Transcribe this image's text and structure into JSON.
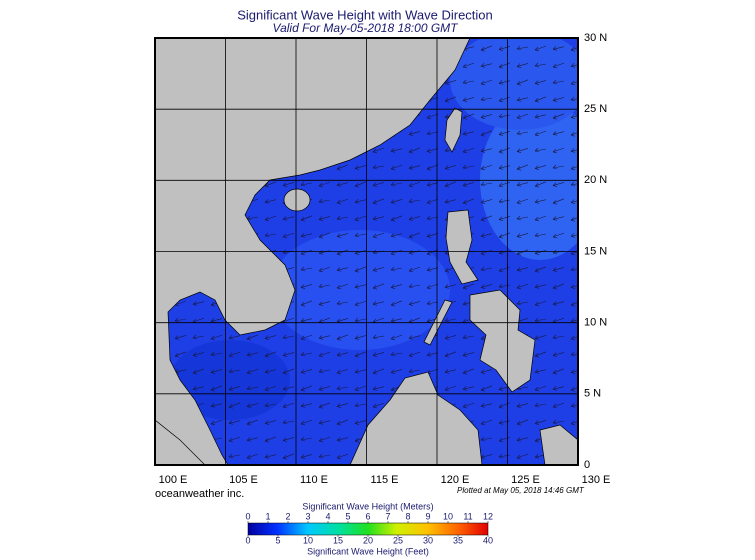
{
  "header": {
    "title": "Significant Wave Height with Wave Direction",
    "subtitle": "Valid For May-05-2018 18:00 GMT"
  },
  "map": {
    "lon_ticks": [
      {
        "value": 100,
        "label": "100 E"
      },
      {
        "value": 105,
        "label": "105 E"
      },
      {
        "value": 110,
        "label": "110 E"
      },
      {
        "value": 115,
        "label": "115 E"
      },
      {
        "value": 120,
        "label": "120 E"
      },
      {
        "value": 125,
        "label": "125 E"
      },
      {
        "value": 130,
        "label": "130 E"
      }
    ],
    "lat_ticks": [
      {
        "value": 0,
        "label": "0"
      },
      {
        "value": 5,
        "label": "5 N"
      },
      {
        "value": 10,
        "label": "10 N"
      },
      {
        "value": 15,
        "label": "15 N"
      },
      {
        "value": 20,
        "label": "20 N"
      },
      {
        "value": 25,
        "label": "25 N"
      },
      {
        "value": 30,
        "label": "30 N"
      }
    ]
  },
  "footer": {
    "credit": "oceanweather inc.",
    "plotted": "Plotted at May 05, 2018 14:46 GMT"
  },
  "colorbar": {
    "meters_title": "Significant Wave Height (Meters)",
    "meters_ticks": [
      0,
      1,
      2,
      3,
      4,
      5,
      6,
      7,
      8,
      9,
      10,
      11,
      12
    ],
    "feet_title": "Significant Wave Height (Feet)",
    "feet_ticks": [
      0,
      5,
      10,
      15,
      20,
      25,
      30,
      35,
      40
    ]
  }
}
